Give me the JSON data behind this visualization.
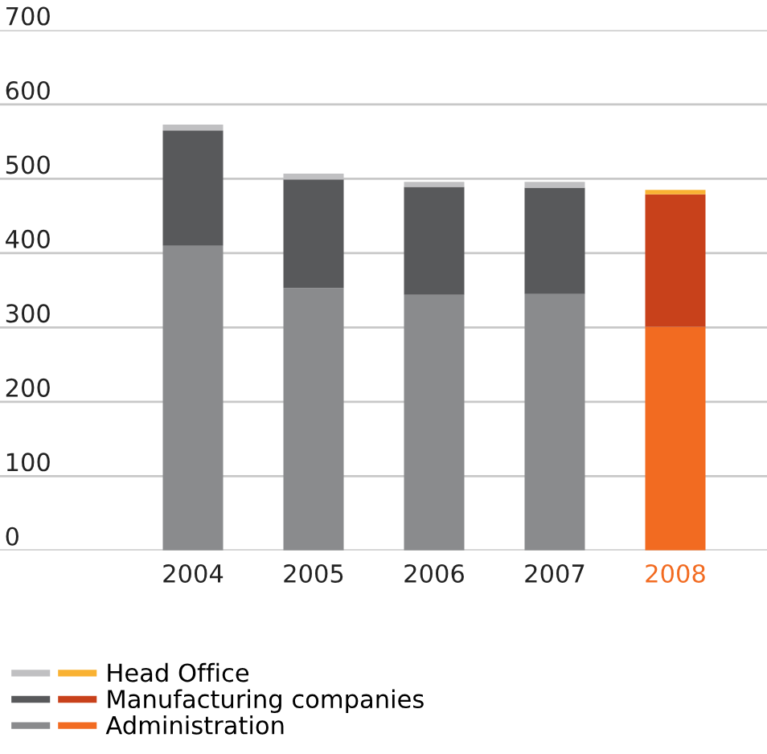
{
  "chart_data": {
    "type": "bar",
    "stacked": true,
    "categories": [
      "2004",
      "2005",
      "2006",
      "2007",
      "2008"
    ],
    "series": [
      {
        "name": "Administration",
        "colors": [
          "#8a8b8d",
          "#8a8b8d",
          "#8a8b8d",
          "#8a8b8d",
          "#f26b21"
        ],
        "values": [
          410,
          353,
          344,
          345,
          301
        ]
      },
      {
        "name": "Manufacturing companies",
        "colors": [
          "#58595b",
          "#58595b",
          "#58595b",
          "#58595b",
          "#c8411b"
        ],
        "values": [
          155,
          146,
          145,
          143,
          178
        ]
      },
      {
        "name": "Head Office",
        "colors": [
          "#c0c0c2",
          "#c0c0c2",
          "#c0c0c2",
          "#c0c0c2",
          "#f9b233"
        ],
        "values": [
          8,
          8,
          7,
          8,
          6
        ]
      }
    ],
    "ylim": [
      0,
      700
    ],
    "yticks": [
      0,
      100,
      200,
      300,
      400,
      500,
      600,
      700
    ],
    "grid": "y",
    "legend": "bottom left"
  }
}
